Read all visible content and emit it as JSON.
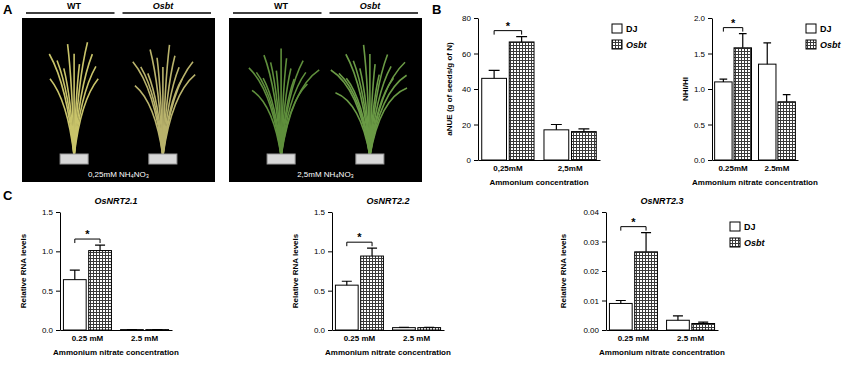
{
  "panel_labels": [
    "A",
    "B",
    "C"
  ],
  "photos": [
    {
      "headers": [
        "WT",
        "Osbt"
      ],
      "condition": "0,25mM NH₄NO₃"
    },
    {
      "headers": [
        "WT",
        "Osbt"
      ],
      "condition": "2,5mM NH₄NO₃"
    }
  ],
  "chart_data": [
    {
      "type": "bar",
      "y_label": "aNUE (g of seeds/g of N)",
      "x_label": "Ammonium concentration",
      "categories": [
        "0,25mM",
        "2,5mM"
      ],
      "series": [
        {
          "name": "DJ",
          "color": "#ffffff",
          "values": [
            46,
            17
          ],
          "errors": [
            4.5,
            3
          ]
        },
        {
          "name": "Osbt",
          "color": "#3a3a3a",
          "marker": "grid",
          "values": [
            66.5,
            16
          ],
          "errors": [
            3,
            1.5
          ]
        }
      ],
      "ylim": [
        0,
        80
      ],
      "yticks": [
        0,
        20,
        40,
        60,
        80
      ],
      "grid": false,
      "legend": "right",
      "annotations": [
        {
          "text": "*",
          "category": "0,25mM"
        }
      ]
    },
    {
      "type": "bar",
      "y_label": "NHI/HI",
      "x_label": "Ammonium nitrate concentration",
      "categories": [
        "0.25mM",
        "2.5mM"
      ],
      "series": [
        {
          "name": "DJ",
          "color": "#ffffff",
          "values": [
            1.1,
            1.35
          ],
          "errors": [
            0.04,
            0.3
          ]
        },
        {
          "name": "Osbt",
          "color": "#3a3a3a",
          "marker": "grid",
          "values": [
            1.58,
            0.82
          ],
          "errors": [
            0.2,
            0.1
          ]
        }
      ],
      "ylim": [
        0,
        2
      ],
      "yticks": [
        {
          "value": 0,
          "label": "0.0"
        },
        {
          "value": 0.5,
          "label": "0.5"
        },
        {
          "value": 1,
          "label": "1.0"
        },
        {
          "value": 1.5,
          "label": "1.5"
        },
        {
          "value": 2,
          "label": "2.0"
        }
      ],
      "grid": false,
      "legend": "right",
      "annotations": [
        {
          "text": "*",
          "category": "0.25mM"
        }
      ]
    },
    {
      "type": "bar",
      "title": "OsNRT2.1",
      "y_label": "Relative RNA levels",
      "x_label": "Ammonium nitrate concentration",
      "categories": [
        "0.25 mM",
        "2.5 mM"
      ],
      "series": [
        {
          "name": "DJ",
          "color": "#ffffff",
          "values": [
            0.64,
            0.005
          ],
          "errors": [
            0.12,
            0
          ]
        },
        {
          "name": "Osbt",
          "color": "#3a3a3a",
          "marker": "grid",
          "values": [
            1.01,
            0.005
          ],
          "errors": [
            0.07,
            0
          ]
        }
      ],
      "ylim": [
        0,
        1.5
      ],
      "yticks": [
        {
          "value": 0,
          "label": "0.0"
        },
        {
          "value": 0.5,
          "label": "0.5"
        },
        {
          "value": 1,
          "label": "1.0"
        },
        {
          "value": 1.5,
          "label": "1.5"
        }
      ],
      "grid": false,
      "legend": false,
      "annotations": [
        {
          "text": "*",
          "category": "0.25 mM"
        }
      ]
    },
    {
      "type": "bar",
      "title": "OsNRT2.2",
      "y_label": "Relative RNA levels",
      "x_label": "Ammonium nitrate concentration",
      "categories": [
        "0.25 mM",
        "2.5 mM"
      ],
      "series": [
        {
          "name": "DJ",
          "color": "#ffffff",
          "values": [
            0.57,
            0.03
          ],
          "errors": [
            0.05,
            0.005
          ]
        },
        {
          "name": "Osbt",
          "color": "#3a3a3a",
          "marker": "grid",
          "values": [
            0.94,
            0.03
          ],
          "errors": [
            0.1,
            0.005
          ]
        }
      ],
      "ylim": [
        0,
        1.5
      ],
      "yticks": [
        {
          "value": 0,
          "label": "0.0"
        },
        {
          "value": 0.5,
          "label": "0.5"
        },
        {
          "value": 1,
          "label": "1.0"
        },
        {
          "value": 1.5,
          "label": "1.5"
        }
      ],
      "grid": false,
      "legend": false,
      "annotations": [
        {
          "text": "*",
          "category": "0.25 mM"
        }
      ]
    },
    {
      "type": "bar",
      "title": "OsNRT2.3",
      "y_label": "Relative RNA levels",
      "x_label": "Ammonium nitrate concentration",
      "categories": [
        "0.25 mM",
        "2.5 mM"
      ],
      "series": [
        {
          "name": "DJ",
          "color": "#ffffff",
          "values": [
            0.009,
            0.0033
          ],
          "errors": [
            0.001,
            0.0015
          ]
        },
        {
          "name": "Osbt",
          "color": "#3a3a3a",
          "marker": "grid",
          "values": [
            0.0265,
            0.0022
          ],
          "errors": [
            0.0065,
            0.0005
          ]
        }
      ],
      "ylim": [
        0,
        0.04
      ],
      "yticks": [
        {
          "value": 0,
          "label": "0.00"
        },
        {
          "value": 0.01,
          "label": "0.01"
        },
        {
          "value": 0.02,
          "label": "0.02"
        },
        {
          "value": 0.03,
          "label": "0.03"
        },
        {
          "value": 0.04,
          "label": "0.04"
        }
      ],
      "grid": false,
      "legend": "right",
      "annotations": [
        {
          "text": "*",
          "category": "0.25 mM"
        }
      ]
    }
  ]
}
